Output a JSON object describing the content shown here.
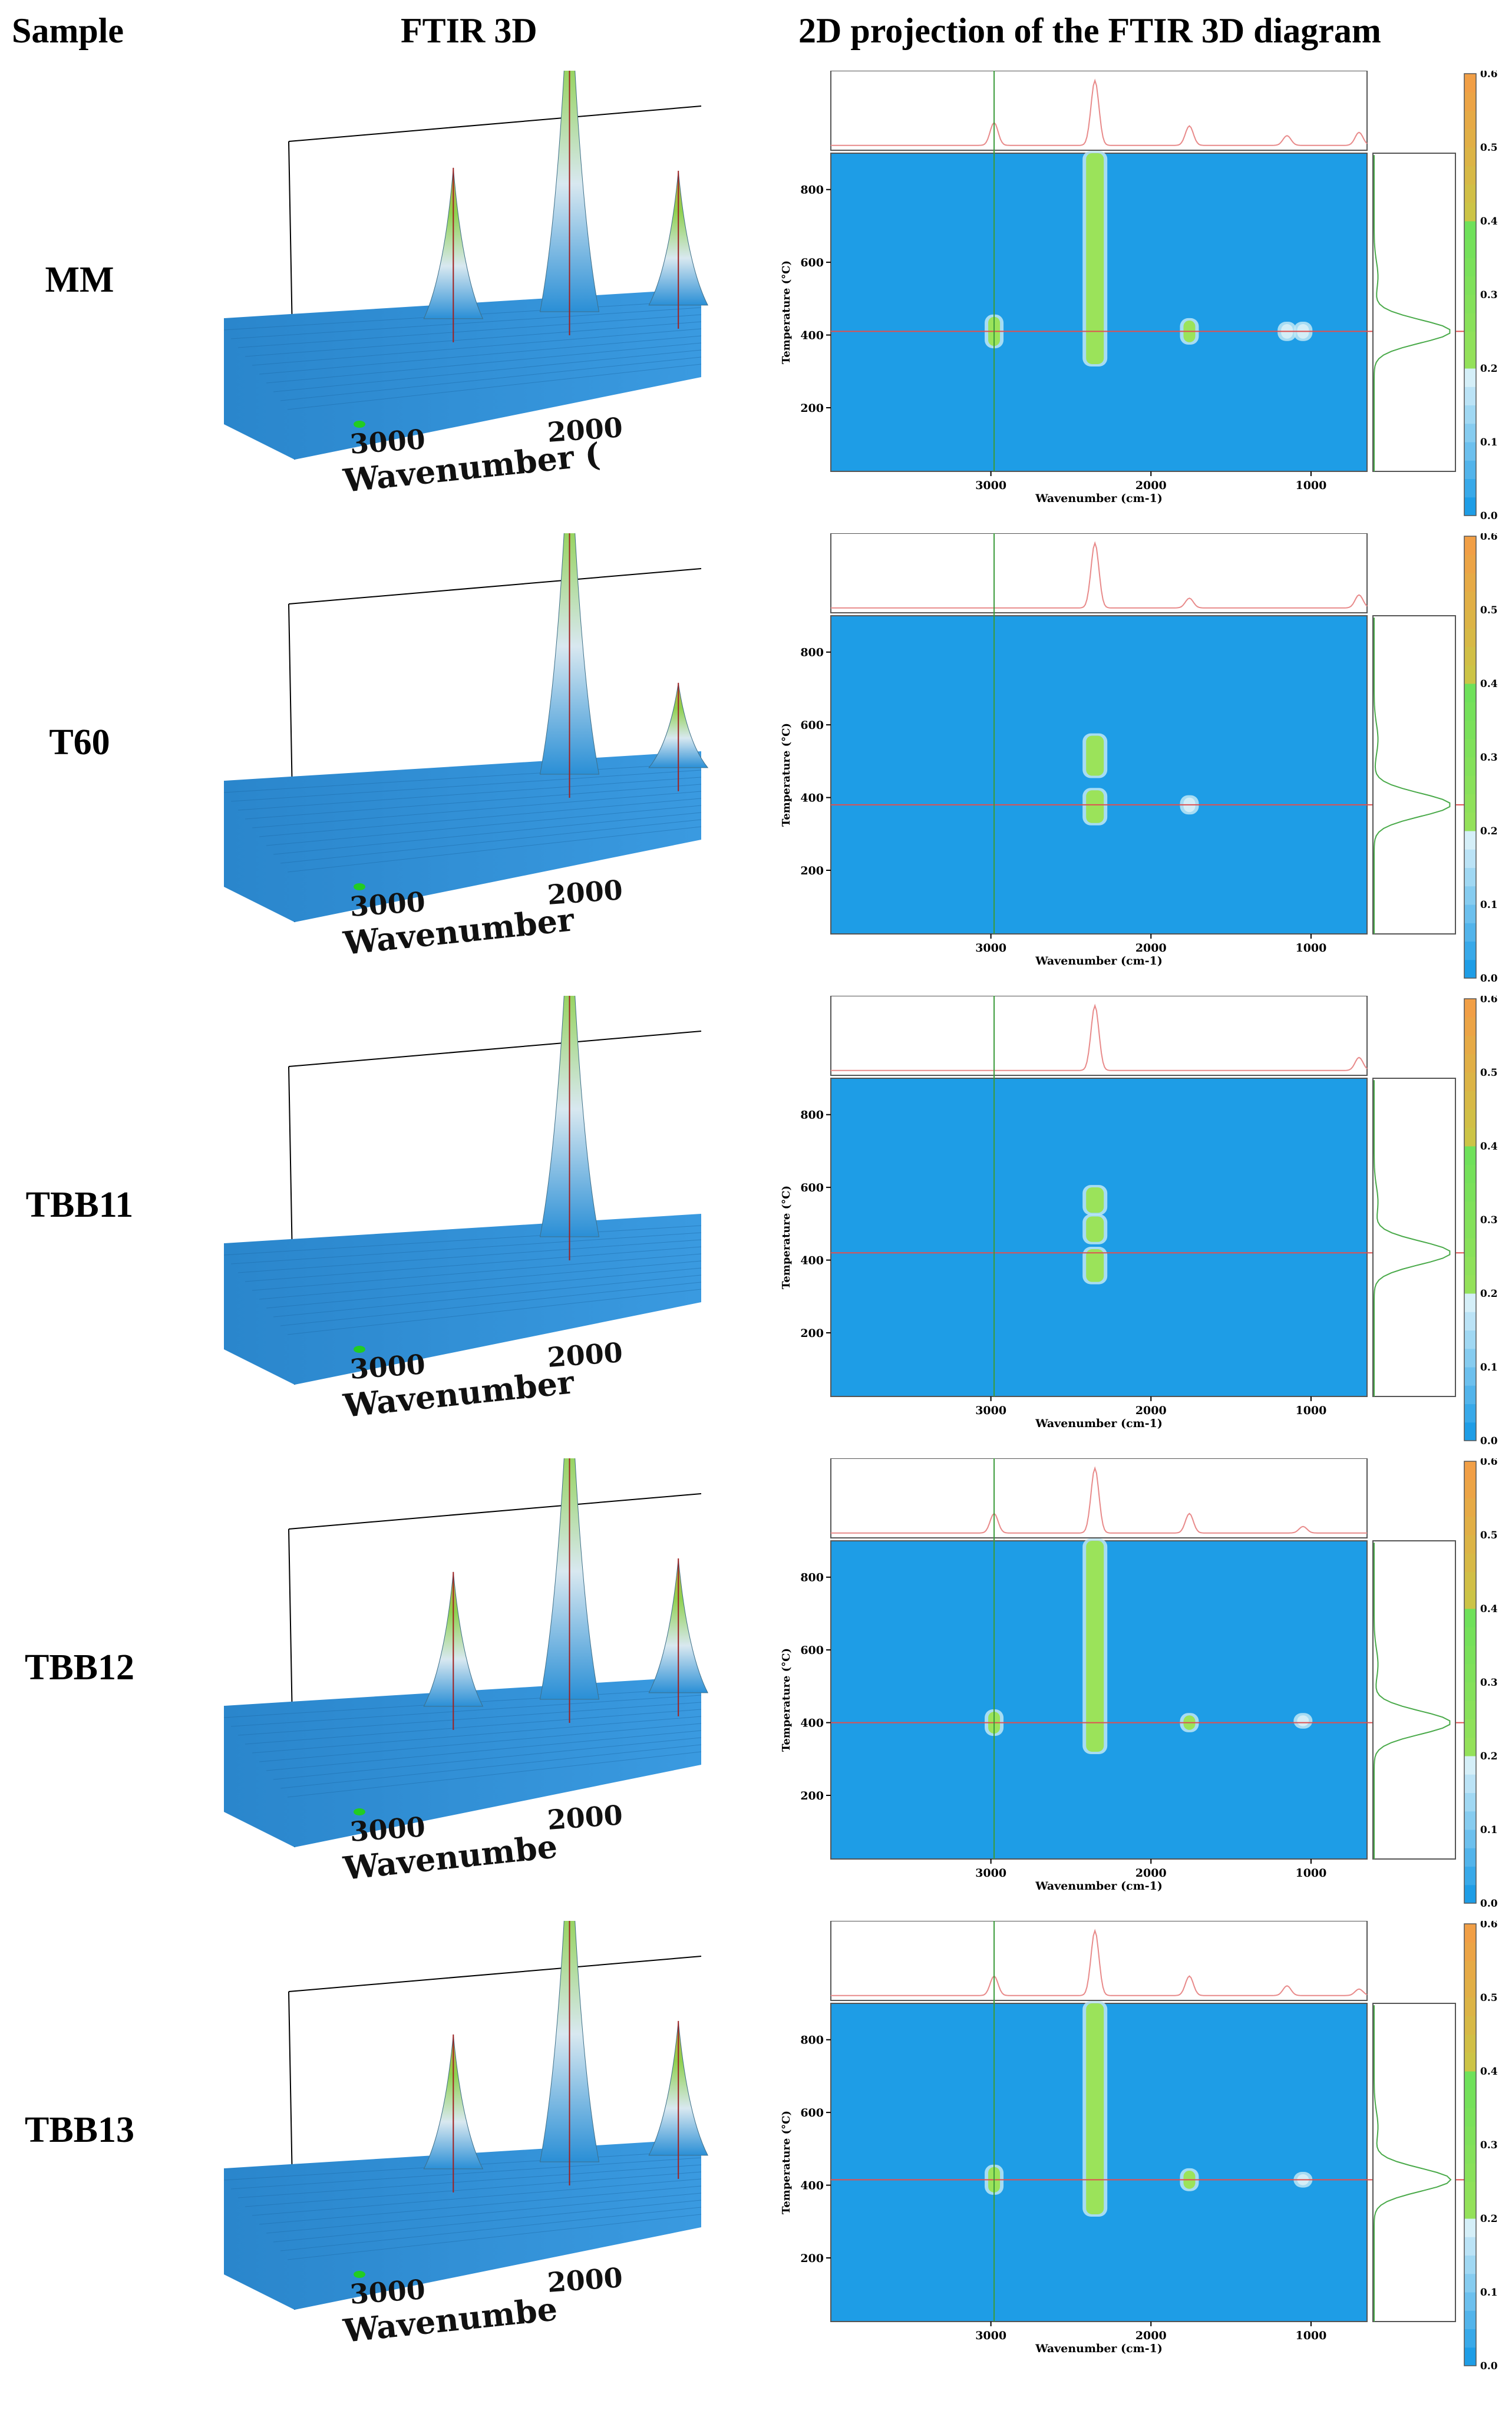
{
  "headers": {
    "sample": "Sample",
    "ftir3d": "FTIR 3D",
    "projection": "2D projection of the FTIR 3D diagram"
  },
  "colors": {
    "heatmap_bg": "#1e9de6",
    "peak_green": "#9be35a",
    "hline": "#e05050",
    "vline": "#3a9a3a",
    "profile": "#e88a8a"
  },
  "chart_data": [
    {
      "type": "heatmap",
      "sample": "MM",
      "xlabel": "Wavenumber (cm-1)",
      "ylabel": "Temperature (°C)",
      "xlim": [
        4000,
        650
      ],
      "ylim": [
        25,
        900
      ],
      "x_ticks": [
        3000,
        2000,
        1000
      ],
      "y_ticks": [
        200,
        400,
        600,
        800
      ],
      "colorbar": {
        "min": 0.0,
        "max": 0.6,
        "ticks": [
          "0.0",
          "0.1",
          "0.2",
          "0.3",
          "0.4",
          "0.5",
          "0.6"
        ]
      },
      "crosshair": {
        "temperature": 410,
        "wavenumber": 2980
      },
      "hot_spots": [
        {
          "wavenumber": 2350,
          "t_min": 320,
          "t_max": 900,
          "intensity": 0.35
        },
        {
          "wavenumber": 2980,
          "t_min": 370,
          "t_max": 450,
          "intensity": 0.22
        },
        {
          "wavenumber": 1760,
          "t_min": 380,
          "t_max": 440,
          "intensity": 0.2
        },
        {
          "wavenumber": 1150,
          "t_min": 390,
          "t_max": 430,
          "intensity": 0.1
        },
        {
          "wavenumber": 1050,
          "t_min": 390,
          "t_max": 430,
          "intensity": 0.1
        }
      ],
      "spectrum_peaks": [
        {
          "x": 2980,
          "y": 0.35
        },
        {
          "x": 2350,
          "y": 1.0
        },
        {
          "x": 1760,
          "y": 0.3
        },
        {
          "x": 1150,
          "y": 0.15
        },
        {
          "x": 700,
          "y": 0.2
        }
      ],
      "temp_profile_peak": 410,
      "axis3d": {
        "ticks": [
          "3000",
          "2000"
        ],
        "label": "Wavenumber ("
      }
    },
    {
      "type": "heatmap",
      "sample": "T60",
      "xlabel": "Wavenumber (cm-1)",
      "ylabel": "Temperature (°C)",
      "xlim": [
        4000,
        650
      ],
      "ylim": [
        25,
        900
      ],
      "x_ticks": [
        3000,
        2000,
        1000
      ],
      "y_ticks": [
        200,
        400,
        600,
        800
      ],
      "colorbar": {
        "min": 0.0,
        "max": 0.6,
        "ticks": [
          "0.0",
          "0.1",
          "0.2",
          "0.3",
          "0.4",
          "0.5",
          "0.6"
        ]
      },
      "crosshair": {
        "temperature": 380,
        "wavenumber": 2980
      },
      "hot_spots": [
        {
          "wavenumber": 2350,
          "t_min": 330,
          "t_max": 420,
          "intensity": 0.3
        },
        {
          "wavenumber": 2350,
          "t_min": 460,
          "t_max": 570,
          "intensity": 0.32
        },
        {
          "wavenumber": 1760,
          "t_min": 360,
          "t_max": 400,
          "intensity": 0.08
        }
      ],
      "spectrum_peaks": [
        {
          "x": 2350,
          "y": 1.0
        },
        {
          "x": 1760,
          "y": 0.15
        },
        {
          "x": 700,
          "y": 0.2
        }
      ],
      "temp_profile_peak": 380,
      "axis3d": {
        "ticks": [
          "3000",
          "2000"
        ],
        "label": "Wavenumber"
      }
    },
    {
      "type": "heatmap",
      "sample": "TBB11",
      "xlabel": "Wavenumber (cm-1)",
      "ylabel": "Temperature (°C)",
      "xlim": [
        4000,
        650
      ],
      "ylim": [
        25,
        900
      ],
      "x_ticks": [
        3000,
        2000,
        1000
      ],
      "y_ticks": [
        200,
        400,
        600,
        800
      ],
      "colorbar": {
        "min": 0.0,
        "max": 0.6,
        "ticks": [
          "0.0",
          "0.1",
          "0.2",
          "0.3",
          "0.4",
          "0.5",
          "0.6"
        ]
      },
      "crosshair": {
        "temperature": 420,
        "wavenumber": 2980
      },
      "hot_spots": [
        {
          "wavenumber": 2350,
          "t_min": 340,
          "t_max": 430,
          "intensity": 0.3
        },
        {
          "wavenumber": 2350,
          "t_min": 450,
          "t_max": 520,
          "intensity": 0.28
        },
        {
          "wavenumber": 2350,
          "t_min": 530,
          "t_max": 600,
          "intensity": 0.28
        }
      ],
      "spectrum_peaks": [
        {
          "x": 2350,
          "y": 1.0
        },
        {
          "x": 700,
          "y": 0.2
        }
      ],
      "temp_profile_peak": 420,
      "axis3d": {
        "ticks": [
          "3000",
          "2000"
        ],
        "label": "Wavenumber"
      }
    },
    {
      "type": "heatmap",
      "sample": "TBB12",
      "xlabel": "Wavenumber (cm-1)",
      "ylabel": "Temperature (°C)",
      "xlim": [
        4000,
        650
      ],
      "ylim": [
        25,
        900
      ],
      "x_ticks": [
        3000,
        2000,
        1000
      ],
      "y_ticks": [
        200,
        400,
        600,
        800
      ],
      "colorbar": {
        "min": 0.0,
        "max": 0.6,
        "ticks": [
          "0.0",
          "0.1",
          "0.2",
          "0.3",
          "0.4",
          "0.5",
          "0.6"
        ]
      },
      "crosshair": {
        "temperature": 400,
        "wavenumber": 2980
      },
      "hot_spots": [
        {
          "wavenumber": 2350,
          "t_min": 320,
          "t_max": 900,
          "intensity": 0.33
        },
        {
          "wavenumber": 2980,
          "t_min": 370,
          "t_max": 430,
          "intensity": 0.2
        },
        {
          "wavenumber": 1760,
          "t_min": 380,
          "t_max": 420,
          "intensity": 0.2
        },
        {
          "wavenumber": 1050,
          "t_min": 390,
          "t_max": 420,
          "intensity": 0.1
        }
      ],
      "spectrum_peaks": [
        {
          "x": 2980,
          "y": 0.3
        },
        {
          "x": 2350,
          "y": 1.0
        },
        {
          "x": 1760,
          "y": 0.3
        },
        {
          "x": 1050,
          "y": 0.1
        }
      ],
      "temp_profile_peak": 400,
      "axis3d": {
        "ticks": [
          "3000",
          "2000"
        ],
        "label": "Wavenumbe"
      }
    },
    {
      "type": "heatmap",
      "sample": "TBB13",
      "xlabel": "Wavenumber (cm-1)",
      "ylabel": "Temperature (°C)",
      "xlim": [
        4000,
        650
      ],
      "ylim": [
        25,
        900
      ],
      "x_ticks": [
        3000,
        2000,
        1000
      ],
      "y_ticks": [
        200,
        400,
        600,
        800
      ],
      "colorbar": {
        "min": 0.0,
        "max": 0.6,
        "ticks": [
          "0.0",
          "0.1",
          "0.2",
          "0.3",
          "0.4",
          "0.5",
          "0.6"
        ]
      },
      "crosshair": {
        "temperature": 415,
        "wavenumber": 2980
      },
      "hot_spots": [
        {
          "wavenumber": 2350,
          "t_min": 320,
          "t_max": 900,
          "intensity": 0.33
        },
        {
          "wavenumber": 2980,
          "t_min": 380,
          "t_max": 450,
          "intensity": 0.22
        },
        {
          "wavenumber": 1760,
          "t_min": 390,
          "t_max": 440,
          "intensity": 0.2
        },
        {
          "wavenumber": 1050,
          "t_min": 400,
          "t_max": 430,
          "intensity": 0.1
        }
      ],
      "spectrum_peaks": [
        {
          "x": 2980,
          "y": 0.3
        },
        {
          "x": 2350,
          "y": 1.0
        },
        {
          "x": 1760,
          "y": 0.3
        },
        {
          "x": 1150,
          "y": 0.15
        },
        {
          "x": 700,
          "y": 0.1
        }
      ],
      "temp_profile_peak": 415,
      "axis3d": {
        "ticks": [
          "3000",
          "2000"
        ],
        "label": "Wavenumbe"
      }
    }
  ]
}
